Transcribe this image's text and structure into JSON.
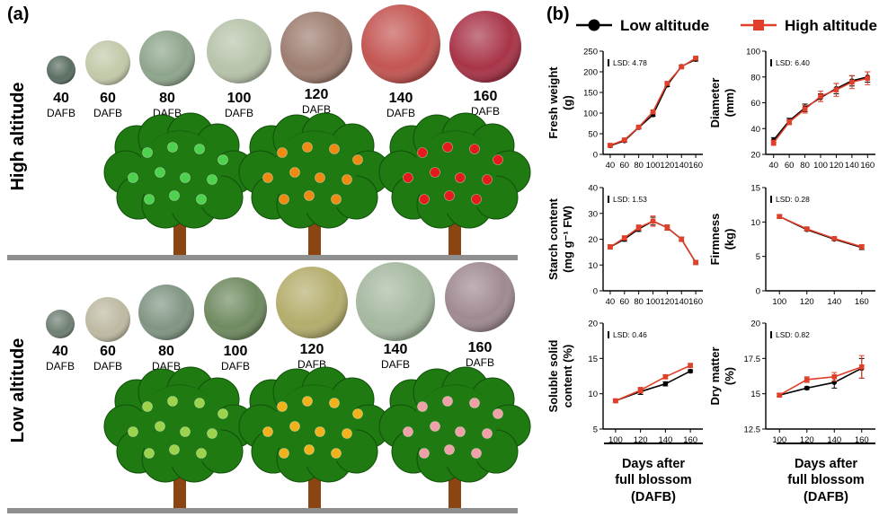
{
  "panel_a": {
    "label": "(a)",
    "high_label": "High altitude",
    "low_label": "Low altitude",
    "unit": "DAFB",
    "high_fruits": [
      {
        "day": "40",
        "color": "#5a6e62"
      },
      {
        "day": "60",
        "color": "#c2c9a8"
      },
      {
        "day": "80",
        "color": "#8ea58c"
      },
      {
        "day": "100",
        "color": "#b7c3aa"
      },
      {
        "day": "120",
        "color": "#9d7d70"
      },
      {
        "day": "140",
        "color": "#c35552"
      },
      {
        "day": "160",
        "color": "#a83448"
      }
    ],
    "low_fruits": [
      {
        "day": "40",
        "color": "#6f7f73"
      },
      {
        "day": "60",
        "color": "#bdb9a2"
      },
      {
        "day": "80",
        "color": "#809582"
      },
      {
        "day": "100",
        "color": "#6f8a60"
      },
      {
        "day": "120",
        "color": "#b4ad6c"
      },
      {
        "day": "140",
        "color": "#a5b8a0"
      },
      {
        "day": "160",
        "color": "#a08a92"
      }
    ],
    "high_tree_fruit_colors": [
      "#4cd24c",
      "#ef8a12",
      "#e41a1c"
    ],
    "low_tree_fruit_colors": [
      "#9bd34b",
      "#f2b21b",
      "#f0a0a8"
    ],
    "tree_green": "#1f7a12",
    "trunk_brown": "#8b4513"
  },
  "panel_b": {
    "label": "(b)",
    "legend": [
      {
        "name": "Low altitude",
        "color": "#000000",
        "marker": "circle"
      },
      {
        "name": "High altitude",
        "color": "#e0402a",
        "marker": "square"
      }
    ],
    "xtitle_lines": [
      "Days after",
      "full blossom",
      "(DAFB)"
    ]
  },
  "chart_data": [
    {
      "type": "line",
      "ylabel_lines": [
        "Fresh weight",
        "(g)"
      ],
      "lsd_label": "LSD: 4.78",
      "x": [
        40,
        60,
        80,
        100,
        120,
        140,
        160
      ],
      "xlim": [
        30,
        170
      ],
      "ylim": [
        0,
        250
      ],
      "yticks": [
        0,
        50,
        100,
        150,
        200,
        250
      ],
      "xticks": [
        40,
        60,
        80,
        100,
        120,
        140,
        160
      ],
      "series": [
        {
          "name": "Low altitude",
          "values": [
            21,
            33,
            65,
            96,
            168,
            213,
            230
          ],
          "err": [
            3,
            3,
            3,
            4,
            4,
            3,
            4
          ]
        },
        {
          "name": "High altitude",
          "values": [
            22,
            35,
            66,
            103,
            172,
            212,
            233
          ],
          "err": [
            3,
            3,
            3,
            4,
            4,
            3,
            4
          ]
        }
      ]
    },
    {
      "type": "line",
      "ylabel_lines": [
        "Diameter",
        "(mm)"
      ],
      "lsd_label": "LSD: 6.40",
      "x": [
        40,
        60,
        80,
        100,
        120,
        140,
        160
      ],
      "xlim": [
        30,
        170
      ],
      "ylim": [
        20,
        100
      ],
      "yticks": [
        20,
        40,
        60,
        80,
        100
      ],
      "xticks": [
        40,
        60,
        80,
        100,
        120,
        140,
        160
      ],
      "series": [
        {
          "name": "Low altitude",
          "values": [
            31,
            46,
            56,
            64,
            71,
            77,
            80
          ],
          "err": [
            2,
            2,
            3,
            3,
            4,
            4,
            4
          ]
        },
        {
          "name": "High altitude",
          "values": [
            29,
            45,
            55,
            65,
            70,
            76,
            79
          ],
          "err": [
            2,
            2,
            3,
            4,
            5,
            5,
            5
          ]
        }
      ]
    },
    {
      "type": "line",
      "ylabel_lines": [
        "Starch content",
        "(mg g⁻¹ FW)"
      ],
      "lsd_label": "LSD: 1.53",
      "x": [
        40,
        60,
        80,
        100,
        120,
        140,
        160
      ],
      "xlim": [
        30,
        170
      ],
      "ylim": [
        0,
        40
      ],
      "yticks": [
        0,
        10,
        20,
        30,
        40
      ],
      "xticks": [
        40,
        60,
        80,
        100,
        120,
        140,
        160
      ],
      "series": [
        {
          "name": "Low altitude",
          "values": [
            17,
            20,
            24,
            27,
            24.5,
            20,
            11
          ],
          "err": [
            0.8,
            0.8,
            1,
            1.5,
            1,
            0.8,
            0.8
          ]
        },
        {
          "name": "High altitude",
          "values": [
            17,
            20.5,
            24.5,
            27,
            24.5,
            20,
            11
          ],
          "err": [
            0.8,
            0.8,
            1,
            2,
            1,
            0.8,
            0.8
          ]
        }
      ]
    },
    {
      "type": "line",
      "ylabel_lines": [
        "Firmness",
        "(kg)"
      ],
      "lsd_label": "LSD: 0.28",
      "x": [
        100,
        120,
        140,
        160
      ],
      "xlim": [
        90,
        170
      ],
      "ylim": [
        0,
        15
      ],
      "yticks": [
        0,
        5,
        10,
        15
      ],
      "xticks": [
        100,
        120,
        140,
        160
      ],
      "series": [
        {
          "name": "Low altitude",
          "values": [
            10.8,
            8.9,
            7.5,
            6.3
          ],
          "err": [
            0.2,
            0.2,
            0.2,
            0.3
          ]
        },
        {
          "name": "High altitude",
          "values": [
            10.8,
            9.0,
            7.6,
            6.4
          ],
          "err": [
            0.2,
            0.2,
            0.2,
            0.3
          ]
        }
      ]
    },
    {
      "type": "line",
      "ylabel_lines": [
        "Soluble solid",
        "content (%)"
      ],
      "lsd_label": "LSD: 0.46",
      "x": [
        100,
        120,
        140,
        160
      ],
      "xlim": [
        90,
        170
      ],
      "ylim": [
        5,
        20
      ],
      "yticks": [
        5,
        10,
        15,
        20
      ],
      "xticks": [
        100,
        120,
        140,
        160
      ],
      "series": [
        {
          "name": "Low altitude",
          "values": [
            9.0,
            10.3,
            11.4,
            13.2
          ],
          "err": [
            0.2,
            0.4,
            0.3,
            0.2
          ]
        },
        {
          "name": "High altitude",
          "values": [
            9.0,
            10.5,
            12.4,
            14.0
          ],
          "err": [
            0.2,
            0.4,
            0.3,
            0.3
          ]
        }
      ]
    },
    {
      "type": "line",
      "ylabel_lines": [
        "Dry matter",
        "(%)"
      ],
      "lsd_label": "LSD: 0.82",
      "x": [
        100,
        120,
        140,
        160
      ],
      "xlim": [
        90,
        170
      ],
      "ylim": [
        12.5,
        20
      ],
      "yticks": [
        12.5,
        15,
        17.5,
        20
      ],
      "xticks": [
        100,
        120,
        140,
        160
      ],
      "series": [
        {
          "name": "Low altitude",
          "values": [
            14.9,
            15.4,
            15.8,
            16.8
          ],
          "err": [
            0.1,
            0.1,
            0.4,
            0.7
          ]
        },
        {
          "name": "High altitude",
          "values": [
            14.9,
            16.0,
            16.2,
            16.9
          ],
          "err": [
            0.1,
            0.2,
            0.3,
            0.8
          ]
        }
      ]
    }
  ]
}
